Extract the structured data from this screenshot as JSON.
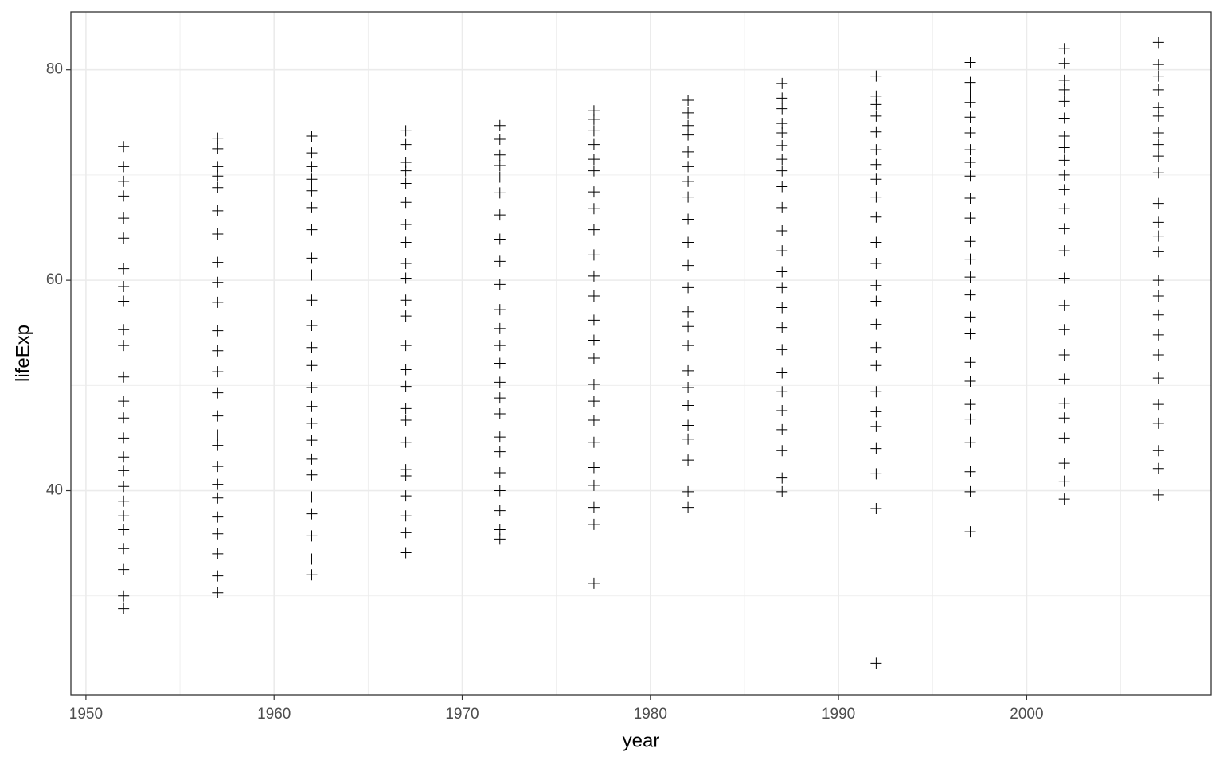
{
  "chart_data": {
    "type": "scatter",
    "x_label": "year",
    "y_label": "lifeExp",
    "xlim": [
      1949.2,
      2009.8
    ],
    "ylim": [
      20.6,
      85.5
    ],
    "xticks": [
      1950,
      1960,
      1970,
      1980,
      1990,
      2000
    ],
    "yticks": [
      40,
      60,
      80
    ],
    "x_minor_grid": [
      1955,
      1965,
      1975,
      1985,
      1995,
      2005
    ],
    "y_minor_grid": [
      30,
      50,
      70
    ],
    "grid": true,
    "color": "#000000",
    "marker": "plus",
    "groups": [
      {
        "x": 1952,
        "values": [
          28.8,
          30.0,
          32.5,
          34.5,
          36.3,
          37.6,
          39.0,
          40.4,
          41.9,
          43.2,
          45.0,
          46.9,
          48.5,
          50.8,
          53.8,
          55.3,
          58.0,
          59.4,
          61.1,
          64.0,
          65.9,
          68.0,
          69.4,
          70.8,
          72.7
        ]
      },
      {
        "x": 1957,
        "values": [
          30.3,
          31.9,
          34.0,
          35.9,
          37.5,
          39.3,
          40.6,
          42.3,
          44.3,
          45.3,
          47.1,
          49.3,
          51.3,
          53.3,
          55.2,
          57.9,
          59.8,
          61.7,
          64.4,
          66.6,
          68.8,
          69.9,
          70.8,
          72.5,
          73.5
        ]
      },
      {
        "x": 1962,
        "values": [
          32.0,
          33.5,
          35.7,
          37.8,
          39.4,
          41.5,
          43.0,
          44.8,
          46.4,
          48.0,
          49.8,
          51.9,
          53.6,
          55.7,
          58.1,
          60.5,
          62.1,
          64.8,
          66.9,
          68.5,
          69.6,
          70.8,
          72.1,
          73.7
        ]
      },
      {
        "x": 1967,
        "values": [
          34.1,
          36.0,
          37.6,
          39.5,
          41.4,
          42.0,
          44.6,
          46.7,
          47.8,
          49.9,
          51.5,
          53.8,
          56.6,
          58.1,
          60.2,
          61.6,
          63.6,
          65.3,
          67.4,
          69.2,
          70.4,
          71.2,
          72.9,
          74.2
        ]
      },
      {
        "x": 1972,
        "values": [
          35.4,
          36.3,
          38.1,
          40.0,
          41.7,
          43.7,
          45.1,
          47.3,
          48.8,
          50.3,
          52.1,
          53.8,
          55.4,
          57.2,
          59.6,
          61.8,
          63.9,
          66.2,
          68.3,
          69.8,
          70.9,
          71.9,
          73.4,
          74.7
        ]
      },
      {
        "x": 1977,
        "values": [
          31.2,
          36.8,
          38.4,
          40.5,
          42.2,
          44.6,
          46.7,
          48.5,
          50.1,
          52.6,
          54.3,
          56.2,
          58.5,
          60.4,
          62.4,
          64.8,
          66.8,
          68.4,
          70.4,
          71.5,
          72.9,
          74.2,
          75.3,
          76.1
        ]
      },
      {
        "x": 1982,
        "values": [
          38.4,
          39.9,
          42.9,
          44.9,
          46.2,
          48.1,
          49.8,
          51.4,
          53.8,
          55.6,
          57.0,
          59.3,
          61.4,
          63.6,
          65.8,
          67.9,
          69.4,
          70.8,
          72.2,
          73.8,
          74.7,
          75.9,
          77.1
        ]
      },
      {
        "x": 1987,
        "values": [
          39.9,
          41.2,
          43.8,
          45.8,
          47.6,
          49.4,
          51.2,
          53.4,
          55.5,
          57.4,
          59.3,
          60.8,
          62.8,
          64.7,
          66.9,
          68.9,
          70.4,
          71.5,
          72.8,
          74.0,
          74.9,
          76.3,
          77.3,
          78.7
        ]
      },
      {
        "x": 1992,
        "values": [
          23.6,
          38.3,
          41.6,
          44.0,
          46.1,
          47.5,
          49.4,
          51.9,
          53.6,
          55.8,
          58.0,
          59.5,
          61.6,
          63.6,
          66.0,
          67.9,
          69.6,
          71.0,
          72.4,
          74.1,
          75.6,
          76.7,
          77.5,
          79.4
        ]
      },
      {
        "x": 1997,
        "values": [
          36.1,
          39.9,
          41.8,
          44.6,
          46.8,
          48.2,
          50.4,
          52.2,
          54.9,
          56.5,
          58.6,
          60.3,
          62.0,
          63.7,
          65.9,
          67.8,
          69.9,
          71.2,
          72.4,
          74.0,
          75.5,
          76.9,
          77.9,
          78.8,
          80.7
        ]
      },
      {
        "x": 2002,
        "values": [
          39.2,
          40.9,
          42.6,
          45.0,
          46.9,
          48.3,
          50.6,
          52.9,
          55.3,
          57.6,
          60.2,
          62.8,
          64.9,
          66.8,
          68.6,
          70.0,
          71.4,
          72.6,
          73.7,
          75.4,
          77.0,
          78.1,
          79.0,
          80.6,
          82.0
        ]
      },
      {
        "x": 2007,
        "values": [
          39.6,
          42.1,
          43.8,
          46.4,
          48.2,
          50.7,
          52.9,
          54.8,
          56.7,
          58.5,
          60.0,
          62.7,
          64.2,
          65.5,
          67.3,
          70.2,
          71.8,
          72.9,
          74.0,
          75.6,
          76.4,
          78.1,
          79.4,
          80.5,
          82.6
        ]
      }
    ]
  }
}
